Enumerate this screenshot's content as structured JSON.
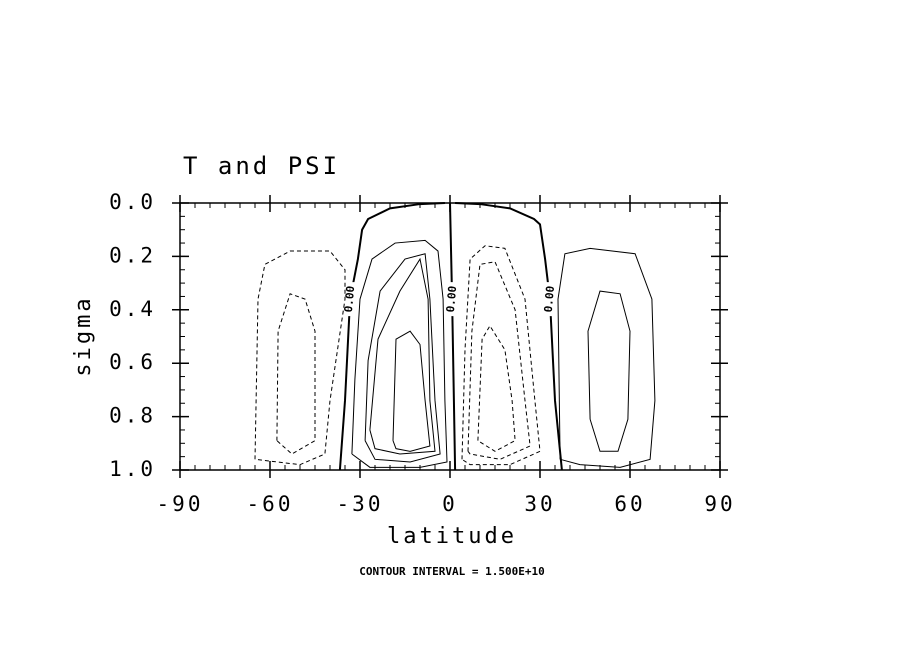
{
  "chart_data": {
    "type": "contour",
    "title": "T and PSI",
    "xlabel": "latitude",
    "ylabel": "sigma",
    "footnote": "CONTOUR INTERVAL = 1.500E+10",
    "xlim": [
      -90,
      90
    ],
    "ylim": [
      1.0,
      0.0
    ],
    "xticks": [
      -90,
      -60,
      -30,
      0,
      30,
      60,
      90
    ],
    "yticks": [
      {
        "value": 0,
        "label": "0.0"
      },
      0.2,
      0.4,
      0.6,
      0.8,
      {
        "value": 1,
        "label": "1.0"
      }
    ],
    "color": "#000000",
    "contours": [
      {
        "level": 0,
        "label": "0.00",
        "lat": [
          -36.7,
          -35,
          -33.3,
          -30.7,
          -29.3,
          -27.3,
          -20,
          -10,
          -1.7
        ],
        "sigma": [
          1.0,
          0.74,
          0.36,
          0.21,
          0.1,
          0.06,
          0.02,
          0.004,
          0
        ]
      },
      {
        "level": 0,
        "label": "0.00",
        "lat": [
          0,
          0.7,
          1.3,
          1.7
        ],
        "sigma": [
          0,
          0.36,
          0.74,
          1.0
        ]
      },
      {
        "level": 0,
        "label": "0.00",
        "lat": [
          1.7,
          10,
          20,
          28,
          30,
          31.7,
          33.3,
          35,
          37.3
        ],
        "sigma": [
          0,
          0.004,
          0.02,
          0.06,
          0.08,
          0.21,
          0.36,
          0.74,
          1.0
        ]
      },
      {
        "level": 15000000000,
        "lat": [
          -32.7,
          -31.7,
          -30,
          -26,
          -18.3,
          -8.3,
          -4,
          -2.3,
          -1.7,
          -1,
          -10,
          -26.7,
          -32.7
        ],
        "sigma": [
          0.94,
          0.66,
          0.36,
          0.21,
          0.15,
          0.14,
          0.18,
          0.36,
          0.74,
          0.97,
          0.99,
          0.99,
          0.94
        ]
      },
      {
        "level": 30000000000,
        "lat": [
          -28.3,
          -27.3,
          -23.3,
          -15,
          -8.3,
          -6.7,
          -5,
          -3.3,
          -13.3,
          -25,
          -28.3
        ],
        "sigma": [
          0.89,
          0.59,
          0.33,
          0.21,
          0.19,
          0.36,
          0.74,
          0.94,
          0.97,
          0.96,
          0.89
        ]
      },
      {
        "level": 45000000000,
        "lat": [
          -26.7,
          -24,
          -16.7,
          -10,
          -7.3,
          -6.7,
          -5,
          -16.7,
          -25,
          -26.7
        ],
        "sigma": [
          0.85,
          0.51,
          0.33,
          0.21,
          0.36,
          0.74,
          0.93,
          0.94,
          0.92,
          0.85
        ]
      },
      {
        "level": 60000000000,
        "lat": [
          -19,
          -18,
          -13.3,
          -10,
          -8.3,
          -6.7,
          -13.3,
          -18,
          -19
        ],
        "sigma": [
          0.89,
          0.51,
          0.48,
          0.53,
          0.74,
          0.91,
          0.93,
          0.92,
          0.89
        ]
      },
      {
        "level": -15000000000,
        "lat": [
          4,
          5,
          6.7,
          11.7,
          18.3,
          25,
          28.3,
          30,
          20,
          6.7,
          4
        ],
        "sigma": [
          0.96,
          0.55,
          0.21,
          0.16,
          0.17,
          0.36,
          0.74,
          0.93,
          0.98,
          0.98,
          0.96
        ]
      },
      {
        "level": -30000000000,
        "lat": [
          6,
          7.3,
          10,
          15,
          21.7,
          25,
          26.7,
          16.7,
          6.7,
          6
        ],
        "sigma": [
          0.93,
          0.48,
          0.23,
          0.22,
          0.4,
          0.74,
          0.91,
          0.96,
          0.94,
          0.93
        ]
      },
      {
        "level": -45000000000,
        "lat": [
          9.3,
          10.7,
          13.3,
          18.3,
          20.7,
          21.7,
          15,
          9.3
        ],
        "sigma": [
          0.89,
          0.51,
          0.46,
          0.55,
          0.74,
          0.89,
          0.93,
          0.89
        ]
      },
      {
        "level": -15000000000,
        "lat": [
          -65,
          -64,
          -61.7,
          -53.3,
          -40,
          -35,
          -35,
          -40,
          -41.7,
          -50,
          -65
        ],
        "sigma": [
          0.96,
          0.36,
          0.23,
          0.18,
          0.18,
          0.25,
          0.36,
          0.74,
          0.94,
          0.98,
          0.96
        ]
      },
      {
        "level": -30000000000,
        "lat": [
          -57.7,
          -57.3,
          -53.3,
          -48.3,
          -45,
          -45,
          -52.7,
          -57.7
        ],
        "sigma": [
          0.89,
          0.48,
          0.34,
          0.36,
          0.48,
          0.89,
          0.94,
          0.89
        ]
      },
      {
        "level": 15000000000,
        "lat": [
          36.7,
          36,
          38.3,
          46.7,
          61.7,
          67.3,
          68.3,
          66.7,
          56.7,
          43.3,
          36.7
        ],
        "sigma": [
          0.96,
          0.36,
          0.19,
          0.17,
          0.19,
          0.36,
          0.74,
          0.96,
          0.99,
          0.98,
          0.96
        ]
      },
      {
        "level": 30000000000,
        "lat": [
          46.7,
          46,
          50,
          56.7,
          60,
          59.3,
          56,
          50,
          46.7
        ],
        "sigma": [
          0.81,
          0.48,
          0.33,
          0.34,
          0.48,
          0.81,
          0.93,
          0.93,
          0.81
        ]
      }
    ]
  }
}
